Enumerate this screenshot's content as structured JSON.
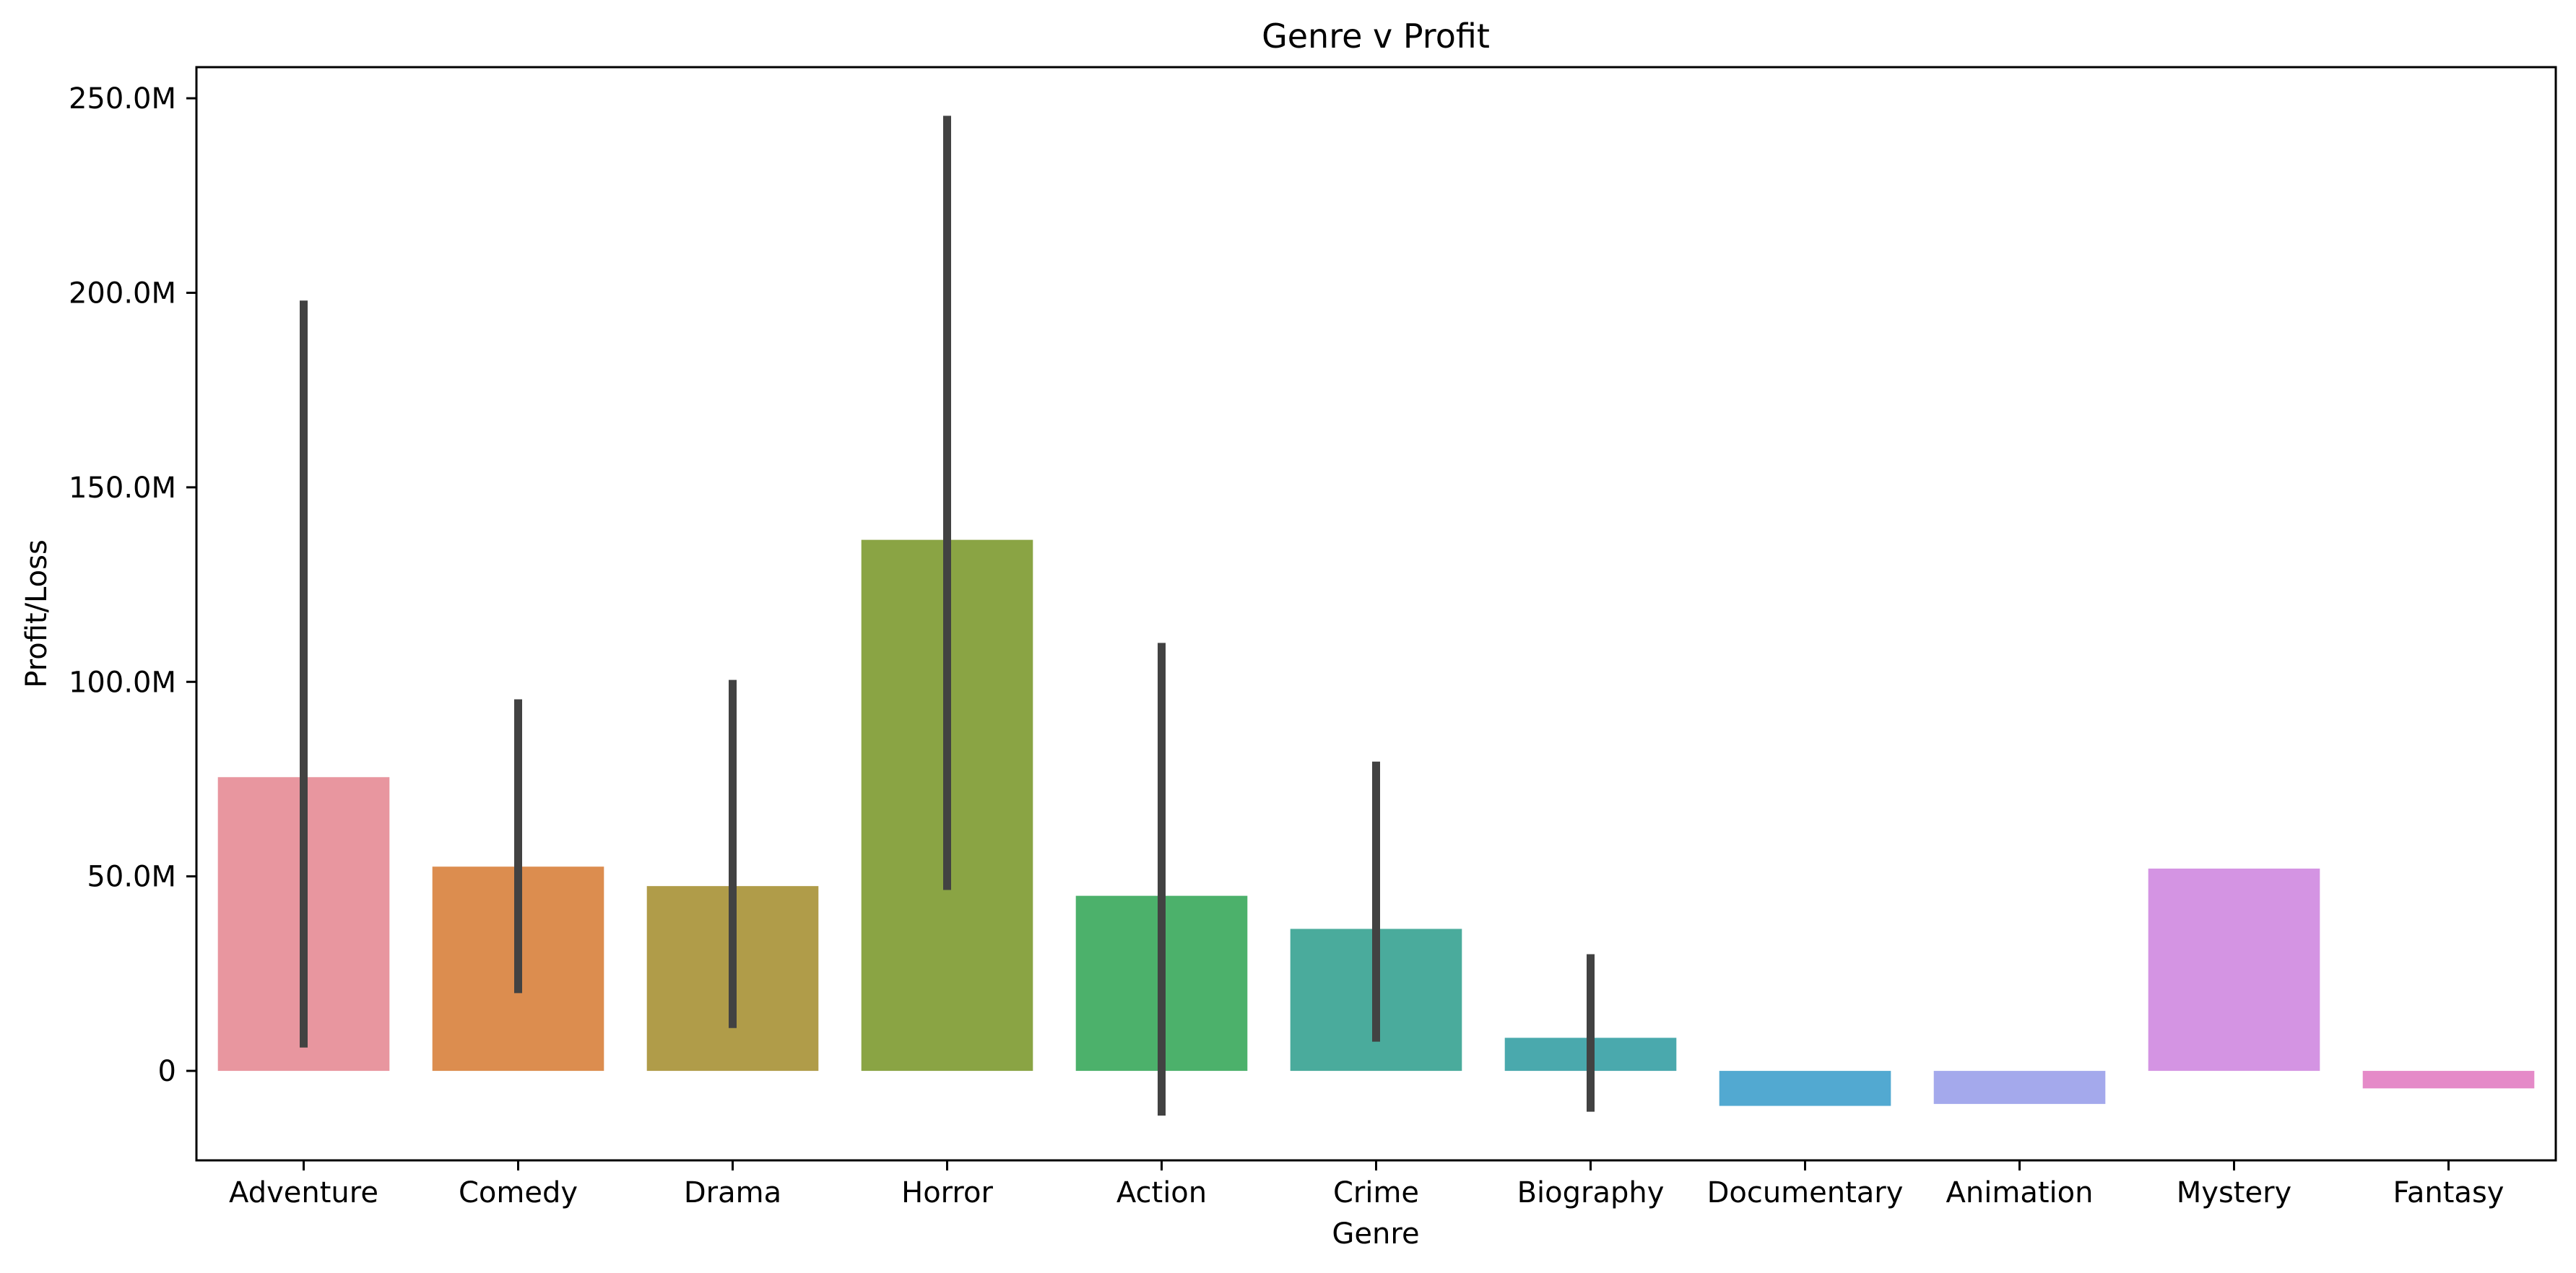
{
  "chart_data": {
    "type": "bar",
    "title": "Genre v Profit",
    "xlabel": "Genre",
    "ylabel": "Profit/Loss",
    "categories": [
      "Adventure",
      "Comedy",
      "Drama",
      "Horror",
      "Action",
      "Crime",
      "Biography",
      "Documentary",
      "Animation",
      "Mystery",
      "Fantasy"
    ],
    "values": [
      75500000,
      52500000,
      47500000,
      136500000,
      45000000,
      36500000,
      8500000,
      -9000000,
      -8500000,
      52000000,
      -4500000
    ],
    "error_bars": [
      [
        6000000,
        198000000
      ],
      [
        20000000,
        95500000
      ],
      [
        11000000,
        100500000
      ],
      [
        46500000,
        245500000
      ],
      [
        -11500000,
        110000000
      ],
      [
        7500000,
        79500000
      ],
      [
        -10500000,
        30000000
      ],
      null,
      null,
      null,
      null
    ],
    "colors": [
      "#e8969f",
      "#dc8d4f",
      "#b09c49",
      "#8aa444",
      "#4cb16b",
      "#4aab9c",
      "#4aa9ad",
      "#52a9d1",
      "#a4a9ec",
      "#d494e3",
      "#e58ac8"
    ],
    "error_bar_color": "#424242",
    "ylim": [
      -23000000,
      258000000
    ],
    "yticks": [
      0,
      50000000,
      100000000,
      150000000,
      200000000,
      250000000
    ],
    "ytick_labels": [
      "0",
      "50.0M",
      "100.0M",
      "150.0M",
      "200.0M",
      "250.0M"
    ],
    "grid": false
  }
}
